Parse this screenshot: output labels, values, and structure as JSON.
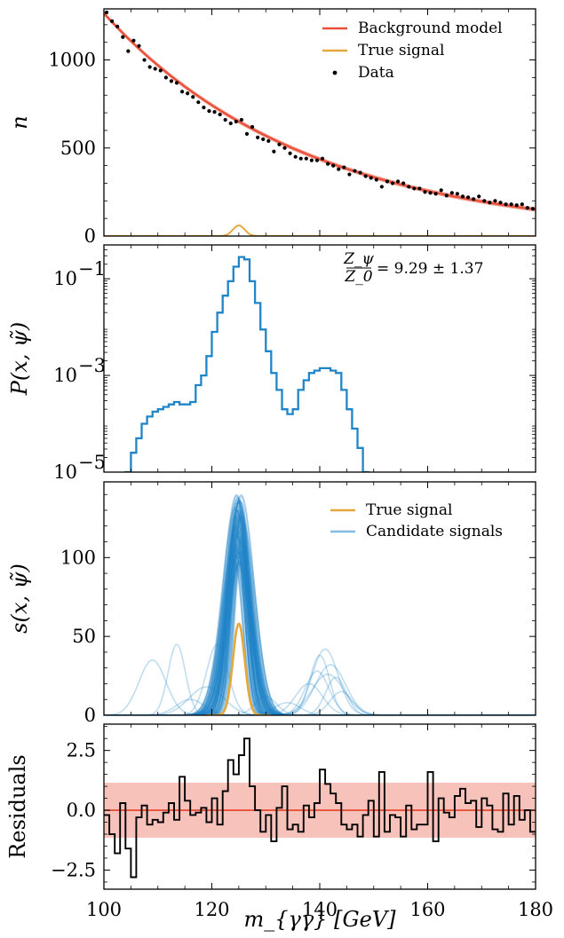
{
  "x_axis": {
    "label": "m_{γγ} [GeV]",
    "ticks": [
      100,
      120,
      140,
      160,
      180
    ],
    "lim": [
      100,
      180
    ]
  },
  "chart_data": [
    {
      "type": "line",
      "panel": "top",
      "ylabel": "n",
      "ylim": [
        0,
        1290
      ],
      "yticks": [
        0,
        500,
        1000
      ],
      "legend_position": "top-right",
      "series": [
        {
          "name": "Background model",
          "color": "#e8503a",
          "band_halfwidth": 12,
          "curve": {
            "a": 1265,
            "b": 0.0266,
            "x0": 100
          }
        },
        {
          "name": "True signal",
          "color": "#e6a83c",
          "peak": {
            "mu": 125,
            "sigma": 1.1,
            "amp": 60
          }
        },
        {
          "name": "Data",
          "color": "#000000",
          "marker": "point",
          "x": [
            100.5,
            101.5,
            102.5,
            103.5,
            104.5,
            105.5,
            106.5,
            107.5,
            108.5,
            109.5,
            110.5,
            111.5,
            112.5,
            113.5,
            114.5,
            115.5,
            116.5,
            117.5,
            118.5,
            119.5,
            120.5,
            121.5,
            122.5,
            123.5,
            124.5,
            125.5,
            126.5,
            127.5,
            128.5,
            129.5,
            130.5,
            131.5,
            132.5,
            133.5,
            134.5,
            135.5,
            136.5,
            137.5,
            138.5,
            139.5,
            140.5,
            141.5,
            142.5,
            143.5,
            144.5,
            145.5,
            146.5,
            147.5,
            148.5,
            149.5,
            150.5,
            151.5,
            152.5,
            153.5,
            154.5,
            155.5,
            156.5,
            157.5,
            158.5,
            159.5,
            160.5,
            161.5,
            162.5,
            163.5,
            164.5,
            165.5,
            166.5,
            167.5,
            168.5,
            169.5,
            170.5,
            171.5,
            172.5,
            173.5,
            174.5,
            175.5,
            176.5,
            177.5,
            178.5,
            179.5
          ],
          "y": [
            1270,
            1220,
            1190,
            1130,
            1050,
            1110,
            1080,
            1000,
            960,
            950,
            940,
            900,
            880,
            870,
            820,
            810,
            790,
            760,
            730,
            710,
            705,
            690,
            660,
            640,
            650,
            660,
            580,
            620,
            560,
            550,
            540,
            480,
            520,
            500,
            470,
            450,
            440,
            440,
            430,
            430,
            440,
            410,
            400,
            380,
            390,
            350,
            370,
            360,
            340,
            330,
            320,
            280,
            310,
            300,
            310,
            300,
            280,
            270,
            270,
            250,
            245,
            240,
            260,
            230,
            245,
            240,
            225,
            220,
            210,
            225,
            200,
            190,
            200,
            190,
            180,
            180,
            175,
            180,
            160,
            155
          ]
        }
      ]
    },
    {
      "type": "line",
      "panel": "second",
      "ylabel": "P(x, ψ̃)",
      "ylim_log10": [
        -5,
        -0.3
      ],
      "yticks_log10": [
        -5,
        -3,
        -1
      ],
      "annotation": {
        "ratio_top": "Z_ψ",
        "ratio_bottom": "Z_0",
        "value": "= 9.29 ± 1.37"
      },
      "series": [
        {
          "name": "",
          "color": "#1f85c8",
          "step": true,
          "x": [
            100,
            101,
            102,
            103,
            104,
            105,
            106,
            107,
            108,
            109,
            110,
            111,
            112,
            113,
            114,
            115,
            116,
            117,
            118,
            119,
            120,
            121,
            122,
            123,
            124,
            125,
            126,
            127,
            128,
            129,
            130,
            131,
            132,
            133,
            134,
            135,
            136,
            137,
            138,
            139,
            140,
            141,
            142,
            143,
            144,
            145,
            146,
            147,
            148,
            149,
            150
          ],
          "log10y": [
            -5.4,
            -5.4,
            -5.3,
            -5.2,
            -5.0,
            -4.6,
            -4.3,
            -4.0,
            -3.85,
            -3.75,
            -3.7,
            -3.65,
            -3.6,
            -3.55,
            -3.6,
            -3.6,
            -3.55,
            -3.2,
            -3.0,
            -2.6,
            -2.1,
            -1.7,
            -1.35,
            -1.05,
            -0.75,
            -0.55,
            -0.6,
            -1.05,
            -1.5,
            -2.05,
            -2.5,
            -2.95,
            -3.3,
            -3.7,
            -3.8,
            -3.7,
            -3.3,
            -3.1,
            -2.95,
            -2.9,
            -2.85,
            -2.85,
            -2.9,
            -2.95,
            -3.3,
            -3.7,
            -4.1,
            -4.5,
            -5.0,
            -5.5,
            -5.5
          ]
        }
      ]
    },
    {
      "type": "line",
      "panel": "third",
      "ylabel": "s(x, ψ̃)",
      "ylim": [
        0,
        148
      ],
      "yticks": [
        0,
        50,
        100
      ],
      "legend_position": "top-right",
      "series": [
        {
          "name": "True signal",
          "color": "#e6a83c",
          "peak": {
            "mu": 125,
            "sigma": 1.1,
            "amp": 58
          }
        },
        {
          "name": "Candidate signals",
          "color": "#1f85c8",
          "main_family": {
            "mu_range": [
              124.2,
              125.6
            ],
            "sigma_range": [
              1.2,
              2.6
            ],
            "amp_range": [
              95,
              140
            ],
            "count": 110
          },
          "outliers": [
            {
              "mu": 109,
              "sigma": 2.5,
              "amp": 35
            },
            {
              "mu": 113.5,
              "sigma": 1.6,
              "amp": 45
            },
            {
              "mu": 121,
              "sigma": 2.0,
              "amp": 45
            },
            {
              "mu": 141,
              "sigma": 2.4,
              "amp": 42
            },
            {
              "mu": 140,
              "sigma": 1.8,
              "amp": 38
            },
            {
              "mu": 142,
              "sigma": 2.8,
              "amp": 32
            },
            {
              "mu": 139.5,
              "sigma": 2.2,
              "amp": 28
            },
            {
              "mu": 143,
              "sigma": 1.9,
              "amp": 24
            },
            {
              "mu": 138,
              "sigma": 2.5,
              "amp": 20
            },
            {
              "mu": 141.5,
              "sigma": 3.0,
              "amp": 26
            },
            {
              "mu": 144,
              "sigma": 2.1,
              "amp": 15
            },
            {
              "mu": 116,
              "sigma": 2.6,
              "amp": 10
            },
            {
              "mu": 119,
              "sigma": 3.2,
              "amp": 18
            },
            {
              "mu": 130,
              "sigma": 2.0,
              "amp": 12
            },
            {
              "mu": 134,
              "sigma": 2.4,
              "amp": 8
            }
          ]
        }
      ]
    },
    {
      "type": "line",
      "panel": "bottom",
      "ylabel": "Residuals",
      "ylim": [
        -3.3,
        3.6
      ],
      "yticks": [
        -2.5,
        0.0,
        2.5
      ],
      "ytick_labels": [
        "−2.5",
        "0.0",
        "2.5"
      ],
      "series": [
        {
          "name": "",
          "color": "#e8503a",
          "band": [
            -1.15,
            1.15
          ],
          "line": 0
        },
        {
          "name": "",
          "color": "#000000",
          "step": true,
          "x": [
            100,
            101,
            102,
            103,
            104,
            105,
            106,
            107,
            108,
            109,
            110,
            111,
            112,
            113,
            114,
            115,
            116,
            117,
            118,
            119,
            120,
            121,
            122,
            123,
            124,
            125,
            126,
            127,
            128,
            129,
            130,
            131,
            132,
            133,
            134,
            135,
            136,
            137,
            138,
            139,
            140,
            141,
            142,
            143,
            144,
            145,
            146,
            147,
            148,
            149,
            150,
            151,
            152,
            153,
            154,
            155,
            156,
            157,
            158,
            159,
            160,
            161,
            162,
            163,
            164,
            165,
            166,
            167,
            168,
            169,
            170,
            171,
            172,
            173,
            174,
            175,
            176,
            177,
            178,
            179,
            180
          ],
          "y": [
            -0.2,
            -1.0,
            -1.8,
            0.3,
            -1.6,
            -2.8,
            -0.3,
            0.2,
            -0.6,
            -0.4,
            -0.5,
            -0.1,
            0.3,
            -0.4,
            1.4,
            0.4,
            -0.2,
            -0.1,
            0.1,
            -0.5,
            0.5,
            -0.6,
            0.8,
            2.1,
            1.5,
            2.3,
            3.0,
            1.0,
            0.0,
            -0.9,
            -0.2,
            -1.3,
            0.1,
            1.0,
            -0.8,
            -0.6,
            -0.9,
            0.2,
            -0.3,
            0.3,
            1.7,
            1.1,
            0.7,
            0.3,
            -0.6,
            -0.8,
            -0.6,
            -1.1,
            -0.2,
            0.4,
            -1.1,
            1.6,
            -0.9,
            -0.2,
            -0.3,
            -1.1,
            0.2,
            -0.8,
            -0.6,
            -0.6,
            1.6,
            -1.3,
            0.5,
            -0.1,
            -0.3,
            0.6,
            0.9,
            0.3,
            0.4,
            -0.7,
            0.5,
            0.2,
            -0.8,
            -0.9,
            0.7,
            -0.6,
            0.6,
            -0.4,
            0.0,
            -0.9,
            -0.3
          ]
        }
      ]
    }
  ]
}
